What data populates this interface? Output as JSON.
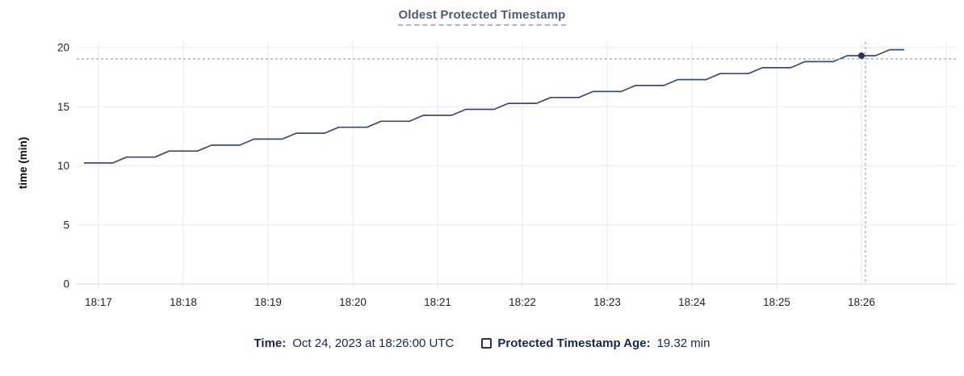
{
  "title": "Oldest Protected Timestamp",
  "legend": {
    "time_label": "Time:",
    "time_value": "Oct 24, 2023 at 18:26:00 UTC",
    "series_label": "Protected Timestamp Age:",
    "series_value": "19.32 min"
  },
  "colors": {
    "title": "#4a5c77",
    "title_underline": "#a4b6cd",
    "series_line": "#3c4b68",
    "hover_point": "#25334e",
    "crosshair": "#a2b6c6",
    "gridline": "#eaeaea",
    "axis_line": "#d6d6d6",
    "tick_label": "#212428",
    "legend_text": "#16294a"
  },
  "chart_data": {
    "type": "line",
    "title": "Oldest Protected Timestamp",
    "xlabel": "",
    "ylabel": "time (min)",
    "ylim": [
      0,
      20
    ],
    "y_ticks": [
      0,
      5,
      10,
      15,
      20
    ],
    "x_tick_labels": [
      "18:17",
      "18:18",
      "18:19",
      "18:20",
      "18:21",
      "18:22",
      "18:23",
      "18:24",
      "18:25",
      "18:26"
    ],
    "x_tick_interval": "1 minute",
    "grid": true,
    "legend_position": "bottom",
    "sample_interval_seconds": 10,
    "x_range": [
      "18:16:50",
      "18:26:30"
    ],
    "series": [
      {
        "name": "Protected Timestamp Age",
        "unit": "min",
        "points": [
          [
            "18:16:50",
            10.24
          ],
          [
            "18:17:00",
            10.24
          ],
          [
            "18:17:10",
            10.24
          ],
          [
            "18:17:20",
            10.74
          ],
          [
            "18:17:30",
            10.74
          ],
          [
            "18:17:40",
            10.74
          ],
          [
            "18:17:50",
            11.25
          ],
          [
            "18:18:00",
            11.25
          ],
          [
            "18:18:10",
            11.25
          ],
          [
            "18:18:20",
            11.75
          ],
          [
            "18:18:30",
            11.75
          ],
          [
            "18:18:40",
            11.75
          ],
          [
            "18:18:50",
            12.26
          ],
          [
            "18:19:00",
            12.26
          ],
          [
            "18:19:10",
            12.26
          ],
          [
            "18:19:20",
            12.76
          ],
          [
            "18:19:30",
            12.76
          ],
          [
            "18:19:40",
            12.76
          ],
          [
            "18:19:50",
            13.26
          ],
          [
            "18:20:00",
            13.26
          ],
          [
            "18:20:10",
            13.26
          ],
          [
            "18:20:20",
            13.77
          ],
          [
            "18:20:30",
            13.77
          ],
          [
            "18:20:40",
            13.77
          ],
          [
            "18:20:50",
            14.27
          ],
          [
            "18:21:00",
            14.27
          ],
          [
            "18:21:10",
            14.27
          ],
          [
            "18:21:20",
            14.78
          ],
          [
            "18:21:30",
            14.78
          ],
          [
            "18:21:40",
            14.78
          ],
          [
            "18:21:50",
            15.28
          ],
          [
            "18:22:00",
            15.28
          ],
          [
            "18:22:10",
            15.28
          ],
          [
            "18:22:20",
            15.78
          ],
          [
            "18:22:30",
            15.78
          ],
          [
            "18:22:40",
            15.78
          ],
          [
            "18:22:50",
            16.29
          ],
          [
            "18:23:00",
            16.29
          ],
          [
            "18:23:10",
            16.29
          ],
          [
            "18:23:20",
            16.79
          ],
          [
            "18:23:30",
            16.79
          ],
          [
            "18:23:40",
            16.79
          ],
          [
            "18:23:50",
            17.3
          ],
          [
            "18:24:00",
            17.3
          ],
          [
            "18:24:10",
            17.3
          ],
          [
            "18:24:20",
            17.8
          ],
          [
            "18:24:30",
            17.8
          ],
          [
            "18:24:40",
            17.8
          ],
          [
            "18:24:50",
            18.3
          ],
          [
            "18:25:00",
            18.3
          ],
          [
            "18:25:10",
            18.3
          ],
          [
            "18:25:20",
            18.81
          ],
          [
            "18:25:30",
            18.81
          ],
          [
            "18:25:40",
            18.81
          ],
          [
            "18:25:50",
            19.32
          ],
          [
            "18:26:00",
            19.32
          ],
          [
            "18:26:10",
            19.32
          ],
          [
            "18:26:20",
            19.82
          ],
          [
            "18:26:30",
            19.82
          ]
        ]
      }
    ],
    "hover": {
      "time": "18:26:00",
      "value": 19.32
    }
  }
}
